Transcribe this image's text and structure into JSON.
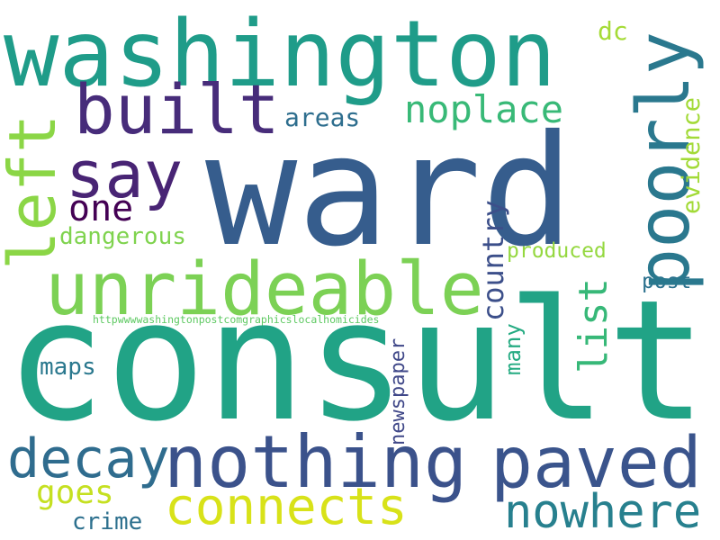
{
  "words": [
    {
      "text": "ward",
      "color": "#365d8d"
    },
    {
      "text": "consult",
      "color": "#21a386"
    },
    {
      "text": "washington",
      "color": "#1f9c89"
    },
    {
      "text": "unrideable",
      "color": "#7cd155"
    },
    {
      "text": "built",
      "color": "#472c7a"
    },
    {
      "text": "poorly",
      "color": "#2a788e"
    },
    {
      "text": "nothing",
      "color": "#3b528b"
    },
    {
      "text": "paved",
      "color": "#3a548c"
    },
    {
      "text": "say",
      "color": "#482474"
    },
    {
      "text": "left",
      "color": "#8bd646"
    },
    {
      "text": "connects",
      "color": "#d8e219"
    },
    {
      "text": "decay",
      "color": "#2f6c8e"
    },
    {
      "text": "nowhere",
      "color": "#27808e"
    },
    {
      "text": "noplace",
      "color": "#38b977"
    },
    {
      "text": "one",
      "color": "#440154"
    },
    {
      "text": "dangerous",
      "color": "#7fd34e"
    },
    {
      "text": "list",
      "color": "#37b878"
    },
    {
      "text": "country",
      "color": "#3c4f8a"
    },
    {
      "text": "evidence",
      "color": "#a2da37"
    },
    {
      "text": "areas",
      "color": "#2e6e8e"
    },
    {
      "text": "goes",
      "color": "#c5e021"
    },
    {
      "text": "maps",
      "color": "#2a788e"
    },
    {
      "text": "many",
      "color": "#25ab82"
    },
    {
      "text": "newspaper",
      "color": "#3f4788"
    },
    {
      "text": "dc",
      "color": "#a5db36"
    },
    {
      "text": "produced",
      "color": "#95d840"
    },
    {
      "text": "post",
      "color": "#2c718e"
    },
    {
      "text": "crime",
      "color": "#2d708e"
    },
    {
      "text": "httpwwwwashingtonpostcomgraphicslocalhomicides",
      "color": "#5ec962"
    }
  ]
}
